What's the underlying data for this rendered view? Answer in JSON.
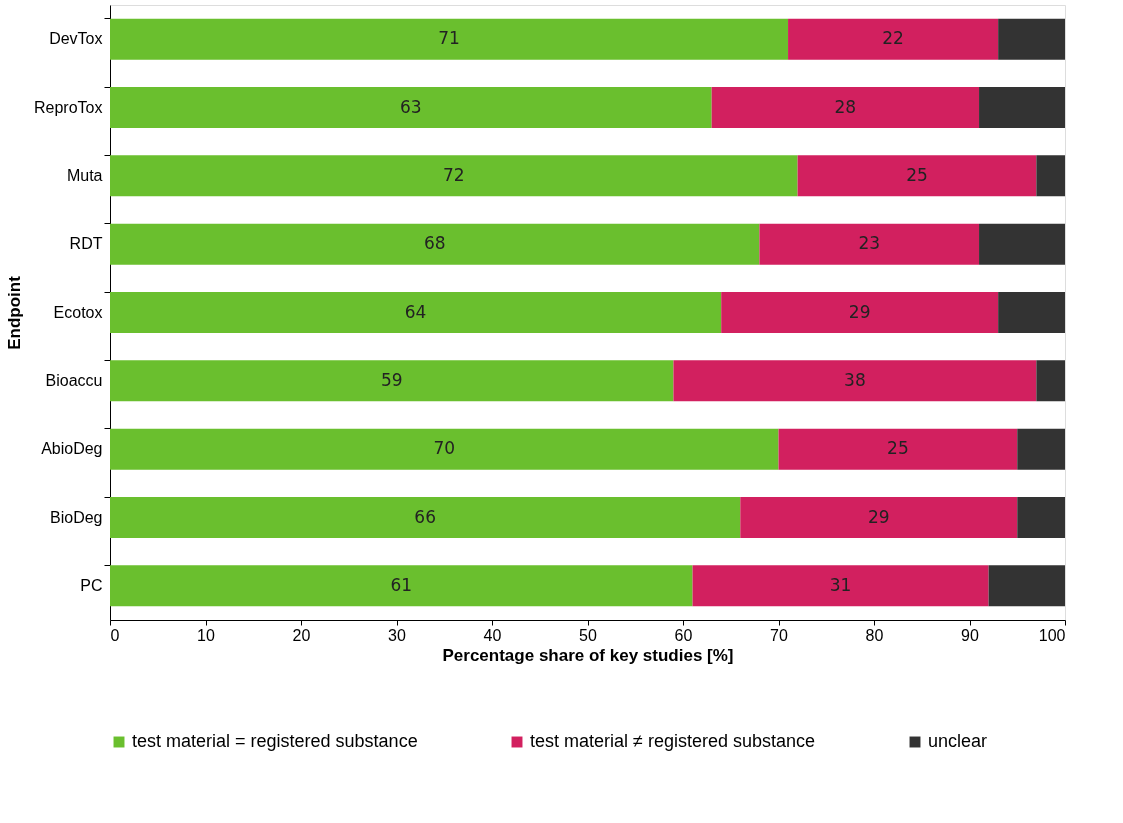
{
  "chart_data": {
    "type": "bar",
    "orientation": "horizontal",
    "stacked": true,
    "xlabel": "Percentage share of key studies [%]",
    "ylabel": "Endpoint",
    "categories": [
      "DevTox",
      "ReproTox",
      "Muta",
      "RDT",
      "Ecotox",
      "Bioaccu",
      "AbioDeg",
      "BioDeg",
      "PC"
    ],
    "series": [
      {
        "name": "test material = registered substance",
        "color": "#6abf2e",
        "values": [
          71,
          63,
          72,
          68,
          64,
          59,
          70,
          66,
          61
        ],
        "value_labels": [
          "71",
          "63",
          "72",
          "68",
          "64",
          "59",
          "70",
          "66",
          "61"
        ]
      },
      {
        "name": "test material ≠ registered substance",
        "color": "#d2205f",
        "values": [
          22,
          28,
          25,
          23,
          29,
          38,
          25,
          29,
          31
        ],
        "value_labels": [
          "22",
          "28",
          "25",
          "23",
          "29",
          "38",
          "25",
          "29",
          "31"
        ]
      },
      {
        "name": "unclear",
        "color": "#333333",
        "values": [
          7,
          9,
          3,
          9,
          7,
          3,
          5,
          5,
          8
        ]
      }
    ],
    "xlim": [
      0,
      100
    ],
    "xticks": [
      0,
      10,
      20,
      30,
      40,
      50,
      60,
      70,
      80,
      90,
      100
    ],
    "grid": false,
    "legend": "bottom"
  }
}
